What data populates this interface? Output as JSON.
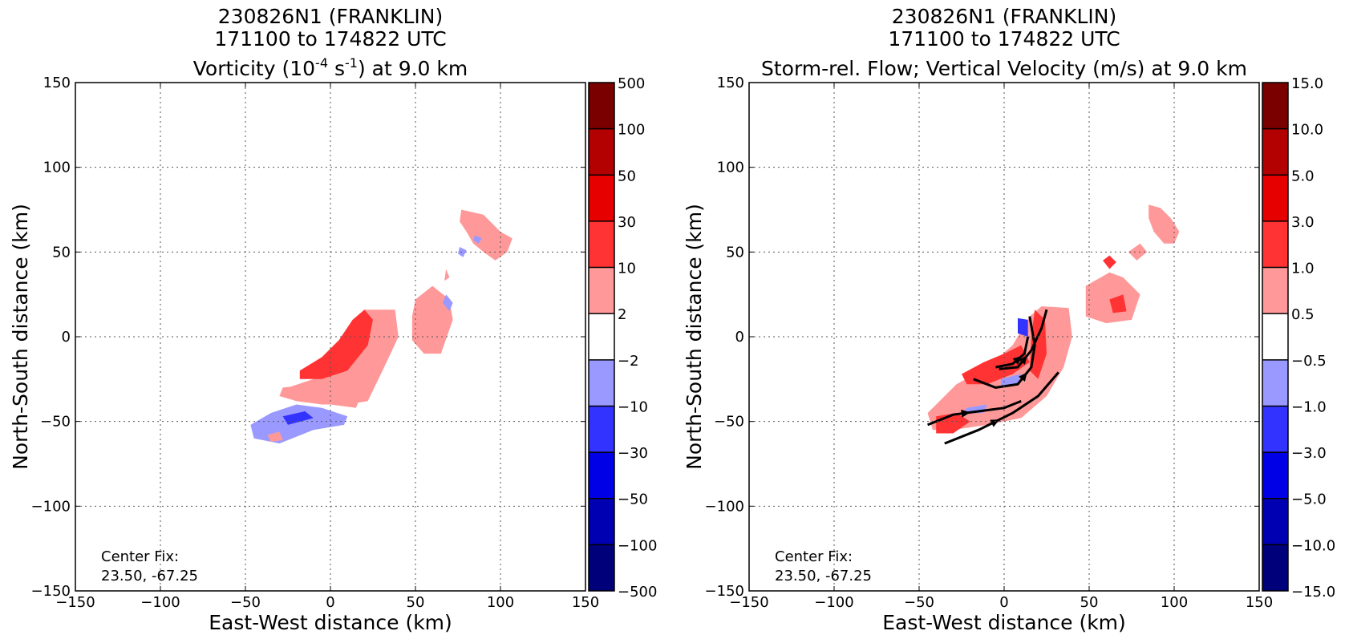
{
  "chart_data": [
    {
      "type": "heatmap",
      "title_lines": [
        "230826N1 (FRANKLIN)",
        "171100 to 174822 UTC"
      ],
      "title_line3": {
        "pre": "Vorticity (10",
        "sup1": "-4",
        "mid": " s",
        "sup2": "-1",
        "post": ") at 9.0 km"
      },
      "xlabel": "East-West distance (km)",
      "ylabel": "North-South distance (km)",
      "xlim": [
        -150,
        150
      ],
      "ylim": [
        -150,
        150
      ],
      "xticks": [
        "−150",
        "−100",
        "−50",
        "0",
        "50",
        "100",
        "150"
      ],
      "yticks": [
        "−150",
        "−100",
        "−50",
        "0",
        "50",
        "100",
        "150"
      ],
      "grid": true,
      "annotation": [
        "Center Fix:",
        "23.50, -67.25"
      ],
      "colorbar": {
        "labels": [
          "500",
          "100",
          "50",
          "30",
          "10",
          "2",
          "−2",
          "−10",
          "−30",
          "−50",
          "−100",
          "−500"
        ],
        "colors": [
          "#7a0000",
          "#b30000",
          "#e60000",
          "#ff3333",
          "#ff9999",
          "#ffffff",
          "#9999ff",
          "#3333ff",
          "#0000e6",
          "#0000b3",
          "#00007a"
        ]
      },
      "regions": [
        {
          "level": 2,
          "color": "#ff9999",
          "points": [
            [
              -10,
              -25
            ],
            [
              0,
              -12
            ],
            [
              10,
              0
            ],
            [
              20,
              16
            ],
            [
              38,
              16
            ],
            [
              40,
              0
            ],
            [
              33,
              -15
            ],
            [
              22,
              -38
            ],
            [
              10,
              -40
            ],
            [
              -5,
              -40
            ],
            [
              -20,
              -38
            ],
            [
              -25,
              -30
            ]
          ]
        },
        {
          "level": 10,
          "color": "#ff3333",
          "points": [
            [
              -18,
              -20
            ],
            [
              -5,
              -12
            ],
            [
              5,
              -2
            ],
            [
              13,
              10
            ],
            [
              20,
              16
            ],
            [
              25,
              10
            ],
            [
              22,
              -5
            ],
            [
              10,
              -20
            ],
            [
              -5,
              -25
            ],
            [
              -18,
              -25
            ]
          ]
        },
        {
          "level": 2,
          "color": "#ff9999",
          "points": [
            [
              -28,
              -30
            ],
            [
              -10,
              -28
            ],
            [
              5,
              -30
            ],
            [
              18,
              -35
            ],
            [
              15,
              -42
            ],
            [
              0,
              -40
            ],
            [
              -20,
              -38
            ],
            [
              -30,
              -35
            ]
          ]
        },
        {
          "level": -2,
          "color": "#9999ff",
          "points": [
            [
              -47,
              -52
            ],
            [
              -35,
              -45
            ],
            [
              -20,
              -40
            ],
            [
              -5,
              -42
            ],
            [
              10,
              -47
            ],
            [
              8,
              -52
            ],
            [
              -10,
              -55
            ],
            [
              -30,
              -63
            ],
            [
              -45,
              -60
            ]
          ]
        },
        {
          "level": -10,
          "color": "#3333ff",
          "points": [
            [
              -28,
              -47
            ],
            [
              -15,
              -44
            ],
            [
              -10,
              -48
            ],
            [
              -25,
              -52
            ]
          ]
        },
        {
          "level": 2,
          "color": "#ff9999",
          "points": [
            [
              -37,
              -58
            ],
            [
              -30,
              -56
            ],
            [
              -28,
              -61
            ],
            [
              -35,
              -62
            ]
          ]
        },
        {
          "level": 2,
          "color": "#ff9999",
          "points": [
            [
              50,
              22
            ],
            [
              60,
              30
            ],
            [
              70,
              22
            ],
            [
              72,
              10
            ],
            [
              65,
              -10
            ],
            [
              55,
              -10
            ],
            [
              48,
              -2
            ],
            [
              48,
              12
            ]
          ]
        },
        {
          "level": -2,
          "color": "#9999ff",
          "points": [
            [
              68,
              25
            ],
            [
              72,
              20
            ],
            [
              70,
              15
            ],
            [
              66,
              20
            ]
          ]
        },
        {
          "level": 2,
          "color": "#ff9999",
          "points": [
            [
              77,
              75
            ],
            [
              90,
              72
            ],
            [
              100,
              62
            ],
            [
              107,
              58
            ],
            [
              104,
              50
            ],
            [
              97,
              45
            ],
            [
              90,
              50
            ],
            [
              84,
              55
            ],
            [
              80,
              62
            ],
            [
              76,
              68
            ]
          ]
        },
        {
          "level": 2,
          "color": "#ff9999",
          "points": [
            [
              68,
              40
            ],
            [
              70,
              35
            ],
            [
              67,
              33
            ]
          ]
        },
        {
          "level": -2,
          "color": "#9999ff",
          "points": [
            [
              76,
              53
            ],
            [
              80,
              51
            ],
            [
              78,
              47
            ],
            [
              75,
              49
            ]
          ]
        },
        {
          "level": -2,
          "color": "#9999ff",
          "points": [
            [
              85,
              60
            ],
            [
              89,
              58
            ],
            [
              87,
              55
            ],
            [
              84,
              57
            ]
          ]
        }
      ]
    },
    {
      "type": "heatmap",
      "title_lines": [
        "230826N1 (FRANKLIN)",
        "171100 to 174822 UTC",
        "Storm-rel. Flow; Vertical Velocity (m/s) at 9.0 km"
      ],
      "xlabel": "East-West distance (km)",
      "ylabel": "North-South distance (km)",
      "xlim": [
        -150,
        150
      ],
      "ylim": [
        -150,
        150
      ],
      "xticks": [
        "−150",
        "−100",
        "−50",
        "0",
        "50",
        "100",
        "150"
      ],
      "yticks": [
        "−150",
        "−100",
        "−50",
        "0",
        "50",
        "100",
        "150"
      ],
      "grid": true,
      "annotation": [
        "Center Fix:",
        "23.50, -67.25"
      ],
      "colorbar": {
        "labels": [
          "15.0",
          "10.0",
          "5.0",
          "3.0",
          "1.0",
          "0.5",
          "−0.5",
          "−1.0",
          "−3.0",
          "−5.0",
          "−10.0",
          "−15.0"
        ],
        "colors": [
          "#7a0000",
          "#b30000",
          "#e60000",
          "#ff3333",
          "#ff9999",
          "#ffffff",
          "#9999ff",
          "#3333ff",
          "#0000e6",
          "#0000b3",
          "#00007a"
        ]
      },
      "regions": [
        {
          "level": 0.5,
          "color": "#ff9999",
          "points": [
            [
              -28,
              -28
            ],
            [
              -10,
              -18
            ],
            [
              5,
              -5
            ],
            [
              15,
              12
            ],
            [
              22,
              18
            ],
            [
              38,
              17
            ],
            [
              40,
              0
            ],
            [
              35,
              -18
            ],
            [
              25,
              -35
            ],
            [
              10,
              -48
            ],
            [
              -10,
              -52
            ],
            [
              -30,
              -55
            ],
            [
              -42,
              -55
            ],
            [
              -45,
              -45
            ],
            [
              -35,
              -35
            ]
          ]
        },
        {
          "level": 1.0,
          "color": "#ff3333",
          "points": [
            [
              -25,
              -22
            ],
            [
              -12,
              -15
            ],
            [
              0,
              -10
            ],
            [
              10,
              -5
            ],
            [
              15,
              -15
            ],
            [
              5,
              -22
            ],
            [
              -10,
              -28
            ],
            [
              -22,
              -28
            ]
          ]
        },
        {
          "level": 1.0,
          "color": "#ff3333",
          "points": [
            [
              18,
              16
            ],
            [
              24,
              10
            ],
            [
              25,
              -10
            ],
            [
              20,
              -25
            ],
            [
              15,
              -20
            ],
            [
              16,
              0
            ]
          ]
        },
        {
          "level": 1.0,
          "color": "#ff3333",
          "points": [
            [
              -40,
              -47
            ],
            [
              -28,
              -45
            ],
            [
              -20,
              -50
            ],
            [
              -30,
              -57
            ],
            [
              -40,
              -57
            ]
          ]
        },
        {
          "level": -1.0,
          "color": "#3333ff",
          "points": [
            [
              8,
              11
            ],
            [
              14,
              10
            ],
            [
              14,
              0
            ],
            [
              8,
              2
            ]
          ]
        },
        {
          "level": -0.5,
          "color": "#9999ff",
          "points": [
            [
              -2,
              -25
            ],
            [
              10,
              -22
            ],
            [
              8,
              -28
            ],
            [
              -2,
              -30
            ]
          ]
        },
        {
          "level": -0.5,
          "color": "#9999ff",
          "points": [
            [
              -22,
              -42
            ],
            [
              -10,
              -40
            ],
            [
              -12,
              -45
            ],
            [
              -24,
              -45
            ]
          ]
        },
        {
          "level": 0.5,
          "color": "#ff9999",
          "points": [
            [
              48,
              30
            ],
            [
              62,
              38
            ],
            [
              70,
              35
            ],
            [
              80,
              25
            ],
            [
              75,
              10
            ],
            [
              60,
              8
            ],
            [
              48,
              12
            ]
          ]
        },
        {
          "level": 1.0,
          "color": "#ff3333",
          "points": [
            [
              58,
              45
            ],
            [
              62,
              48
            ],
            [
              66,
              44
            ],
            [
              62,
              40
            ]
          ]
        },
        {
          "level": 1.0,
          "color": "#ff3333",
          "points": [
            [
              62,
              22
            ],
            [
              70,
              25
            ],
            [
              72,
              15
            ],
            [
              64,
              14
            ]
          ]
        },
        {
          "level": 0.5,
          "color": "#ff9999",
          "points": [
            [
              73,
              50
            ],
            [
              80,
              55
            ],
            [
              84,
              50
            ],
            [
              78,
              45
            ]
          ]
        },
        {
          "level": 0.5,
          "color": "#ff9999",
          "points": [
            [
              85,
              78
            ],
            [
              92,
              76
            ],
            [
              98,
              70
            ],
            [
              103,
              62
            ],
            [
              100,
              55
            ],
            [
              94,
              55
            ],
            [
              88,
              62
            ],
            [
              85,
              70
            ]
          ]
        }
      ],
      "streamlines": [
        [
          [
            -45,
            -52
          ],
          [
            -30,
            -46
          ],
          [
            -15,
            -44
          ],
          [
            0,
            -42
          ],
          [
            10,
            -38
          ]
        ],
        [
          [
            -35,
            -63
          ],
          [
            -15,
            -55
          ],
          [
            5,
            -45
          ],
          [
            20,
            -35
          ],
          [
            32,
            -21
          ]
        ],
        [
          [
            -18,
            -25
          ],
          [
            -5,
            -30
          ],
          [
            8,
            -28
          ],
          [
            16,
            -18
          ],
          [
            18,
            -5
          ],
          [
            15,
            12
          ]
        ],
        [
          [
            -3,
            -19
          ],
          [
            8,
            -18
          ],
          [
            16,
            -8
          ],
          [
            22,
            5
          ],
          [
            25,
            16
          ]
        ],
        [
          [
            -5,
            -18
          ],
          [
            5,
            -16
          ],
          [
            12,
            -10
          ],
          [
            14,
            0
          ]
        ]
      ]
    }
  ]
}
